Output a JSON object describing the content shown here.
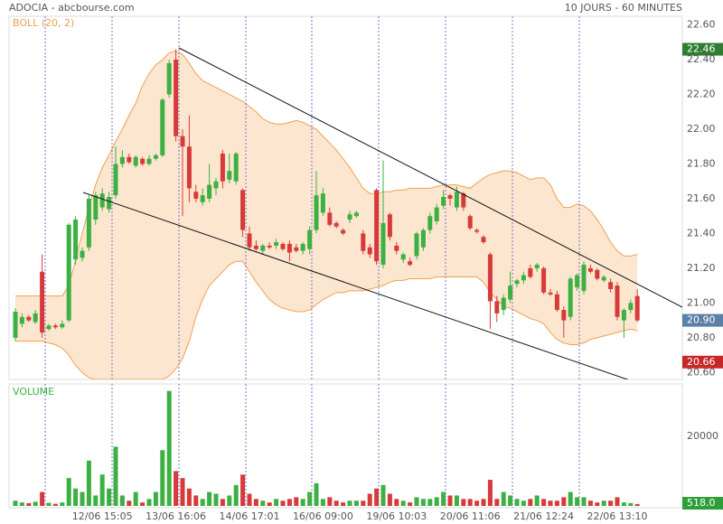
{
  "chart_data": {
    "type": "candlestick",
    "title": "ADOCIA - abcbourse.com",
    "subtitle": "10 JOURS - 60 MINUTES",
    "indicator_label": "BOLL (20, 2)",
    "volume_label": "VOLUME",
    "up_color": "#3cb043",
    "down_color": "#d83a3a",
    "band_color": "#f0a050",
    "categories": [
      null,
      null,
      null,
      null,
      null,
      null,
      null,
      null,
      null,
      null,
      null,
      null,
      null,
      "12/06 15:05",
      null,
      null,
      null,
      null,
      null,
      null,
      null,
      null,
      null,
      null,
      "13/06 16:06",
      null,
      null,
      null,
      null,
      null,
      null,
      null,
      null,
      null,
      null,
      "14/06 17:01",
      null,
      null,
      null,
      null,
      null,
      null,
      null,
      null,
      null,
      null,
      "16/06 09:00",
      null,
      null,
      null,
      null,
      null,
      null,
      null,
      null,
      null,
      null,
      "19/06 10:03",
      null,
      null,
      null,
      null,
      null,
      null,
      null,
      null,
      null,
      null,
      "20/06 11:06",
      null,
      null,
      null,
      null,
      null,
      null,
      null,
      null,
      null,
      null,
      "21/06 12:24",
      null,
      null,
      null,
      null,
      null,
      null,
      null,
      null,
      null,
      null,
      "22/06 13:10",
      null,
      null,
      null
    ],
    "open": [
      20.8,
      20.88,
      20.92,
      20.89,
      21.18,
      20.85,
      20.87,
      20.86,
      20.9,
      21.25,
      21.26,
      21.32,
      21.48,
      21.55,
      21.54,
      21.62,
      21.8,
      21.84,
      21.79,
      21.83,
      21.8,
      21.83,
      21.85,
      22.2,
      22.4,
      21.96,
      21.9,
      21.64,
      21.58,
      21.6,
      21.66,
      21.86,
      21.71,
      21.7,
      21.65,
      21.4,
      21.33,
      21.3,
      21.33,
      21.33,
      21.34,
      21.34,
      21.32,
      21.3,
      21.31,
      21.42,
      21.52,
      21.52,
      21.46,
      21.42,
      21.48,
      21.5,
      21.4,
      21.32,
      21.65,
      21.22,
      21.51,
      21.33,
      21.25,
      21.24,
      21.27,
      21.32,
      21.42,
      21.47,
      21.56,
      21.62,
      21.55,
      21.63,
      21.5,
      21.42,
      21.38,
      21.28,
      21.01,
      20.96,
      21.02,
      21.11,
      21.13,
      21.2,
      21.2,
      21.2,
      21.06,
      21.05,
      20.96,
      20.92,
      21.09,
      21.07,
      21.2,
      21.19,
      21.13,
      21.12,
      21.1,
      20.9,
      20.96,
      21.04
    ],
    "high": [
      20.97,
      20.94,
      20.93,
      20.96,
      21.28,
      20.88,
      20.88,
      20.9,
      21.46,
      21.5,
      21.32,
      21.62,
      21.64,
      21.66,
      21.64,
      21.9,
      21.88,
      21.86,
      21.85,
      21.84,
      21.85,
      21.86,
      22.18,
      22.4,
      22.46,
      22.0,
      22.08,
      21.68,
      21.66,
      21.8,
      21.72,
      21.88,
      21.86,
      21.87,
      21.66,
      21.44,
      21.36,
      21.34,
      21.35,
      21.37,
      21.35,
      21.36,
      21.34,
      21.35,
      21.44,
      21.76,
      21.66,
      21.55,
      21.47,
      21.43,
      21.53,
      21.53,
      21.42,
      21.34,
      21.66,
      21.82,
      21.52,
      21.35,
      21.29,
      21.26,
      21.41,
      21.43,
      21.52,
      21.57,
      21.65,
      21.63,
      21.67,
      21.64,
      21.51,
      21.43,
      21.39,
      21.29,
      21.04,
      21.05,
      21.18,
      21.14,
      21.18,
      21.22,
      21.23,
      21.21,
      21.08,
      21.07,
      20.98,
      21.15,
      21.17,
      21.24,
      21.22,
      21.2,
      21.16,
      21.14,
      21.12,
      20.97,
      21.02,
      21.08
    ],
    "low": [
      20.78,
      20.86,
      20.89,
      20.88,
      20.8,
      20.84,
      20.85,
      20.85,
      20.89,
      21.22,
      21.24,
      21.3,
      21.45,
      21.53,
      21.52,
      21.6,
      21.78,
      21.8,
      21.78,
      21.79,
      21.79,
      21.82,
      21.84,
      22.18,
      21.93,
      21.5,
      21.58,
      21.58,
      21.56,
      21.58,
      21.62,
      21.66,
      21.69,
      21.68,
      21.38,
      21.3,
      21.3,
      21.28,
      21.31,
      21.31,
      21.3,
      21.24,
      21.29,
      21.28,
      21.28,
      21.4,
      21.5,
      21.44,
      21.43,
      21.39,
      21.46,
      21.49,
      21.28,
      21.26,
      21.22,
      21.2,
      21.36,
      21.28,
      21.23,
      21.21,
      21.25,
      21.3,
      21.4,
      21.45,
      21.54,
      21.56,
      21.53,
      21.53,
      21.42,
      21.4,
      21.34,
      20.85,
      20.89,
      20.93,
      21.0,
      21.09,
      21.11,
      21.14,
      21.18,
      21.05,
      21.04,
      20.95,
      20.8,
      20.9,
      21.07,
      21.05,
      21.17,
      21.13,
      21.12,
      21.06,
      20.9,
      20.8,
      20.94,
      20.89
    ],
    "close": [
      20.95,
      20.92,
      20.9,
      20.94,
      20.83,
      20.87,
      20.86,
      20.88,
      21.45,
      21.48,
      21.3,
      21.6,
      21.62,
      21.63,
      21.61,
      21.8,
      21.84,
      21.81,
      21.84,
      21.8,
      21.83,
      21.85,
      22.17,
      22.38,
      21.96,
      21.9,
      21.66,
      21.6,
      21.62,
      21.68,
      21.7,
      21.7,
      21.76,
      21.86,
      21.42,
      21.32,
      21.31,
      21.33,
      21.32,
      21.35,
      21.31,
      21.29,
      21.3,
      21.34,
      21.42,
      21.62,
      21.63,
      21.45,
      21.44,
      21.4,
      21.51,
      21.52,
      21.3,
      21.28,
      21.24,
      21.46,
      21.38,
      21.3,
      21.28,
      21.22,
      21.4,
      21.42,
      21.5,
      21.55,
      21.61,
      21.6,
      21.64,
      21.55,
      21.43,
      21.41,
      21.35,
      21.01,
      20.94,
      21.03,
      21.1,
      21.13,
      21.16,
      21.15,
      21.22,
      21.06,
      21.05,
      20.96,
      20.9,
      21.14,
      21.16,
      21.22,
      21.18,
      21.14,
      21.15,
      21.08,
      20.92,
      20.96,
      21.0,
      20.9
    ],
    "volume": [
      1500,
      1000,
      800,
      1200,
      4000,
      900,
      600,
      1000,
      8000,
      5000,
      4000,
      13000,
      3000,
      9000,
      5000,
      17000,
      3000,
      1500,
      4000,
      1000,
      2000,
      4000,
      16000,
      33000,
      10000,
      8000,
      5000,
      3000,
      2000,
      4000,
      3500,
      2000,
      3000,
      6000,
      9000,
      3500,
      2000,
      1500,
      1000,
      2000,
      1500,
      2000,
      2500,
      2000,
      4000,
      6500,
      2000,
      2500,
      1500,
      1000,
      1500,
      1500,
      1500,
      3500,
      5000,
      6000,
      3500,
      2000,
      1500,
      1000,
      2500,
      2000,
      2000,
      2500,
      4000,
      3000,
      3000,
      2000,
      2000,
      1500,
      2000,
      7500,
      2000,
      4000,
      3000,
      2000,
      1500,
      2000,
      3000,
      2000,
      1500,
      1500,
      2500,
      4000,
      2500,
      2500,
      1500,
      1000,
      1500,
      1500,
      2500,
      1000,
      800,
      518
    ],
    "bollinger": {
      "upper": [
        21.04,
        21.04,
        21.04,
        21.04,
        21.04,
        21.04,
        21.04,
        21.04,
        21.1,
        21.25,
        21.4,
        21.55,
        21.68,
        21.78,
        21.85,
        21.93,
        22.0,
        22.08,
        22.15,
        22.25,
        22.32,
        22.37,
        22.4,
        22.44,
        22.45,
        22.43,
        22.38,
        22.32,
        22.28,
        22.26,
        22.24,
        22.22,
        22.2,
        22.18,
        22.16,
        22.13,
        22.1,
        22.06,
        22.04,
        22.03,
        22.03,
        22.04,
        22.05,
        22.04,
        22.02,
        22.0,
        21.96,
        21.92,
        21.88,
        21.83,
        21.78,
        21.72,
        21.66,
        21.63,
        21.63,
        21.64,
        21.64,
        21.65,
        21.65,
        21.66,
        21.66,
        21.66,
        21.66,
        21.67,
        21.68,
        21.68,
        21.68,
        21.67,
        21.66,
        21.69,
        21.72,
        21.74,
        21.75,
        21.76,
        21.76,
        21.75,
        21.73,
        21.71,
        21.72,
        21.72,
        21.68,
        21.6,
        21.55,
        21.55,
        21.57,
        21.56,
        21.53,
        21.48,
        21.42,
        21.35,
        21.3,
        21.27,
        21.27,
        21.28
      ],
      "lower": [
        20.78,
        20.78,
        20.78,
        20.78,
        20.78,
        20.77,
        20.76,
        20.74,
        20.7,
        20.64,
        20.6,
        20.57,
        20.56,
        20.56,
        20.56,
        20.56,
        20.56,
        20.56,
        20.56,
        20.56,
        20.56,
        20.56,
        20.56,
        20.58,
        20.62,
        20.68,
        20.78,
        20.92,
        21.02,
        21.1,
        21.14,
        21.18,
        21.22,
        21.24,
        21.24,
        21.18,
        21.12,
        21.07,
        21.02,
        20.99,
        20.97,
        20.96,
        20.95,
        20.95,
        20.96,
        20.99,
        21.02,
        21.04,
        21.06,
        21.06,
        21.07,
        21.07,
        21.07,
        21.08,
        21.09,
        21.1,
        21.12,
        21.13,
        21.13,
        21.14,
        21.14,
        21.14,
        21.14,
        21.15,
        21.15,
        21.15,
        21.15,
        21.15,
        21.15,
        21.15,
        21.12,
        21.06,
        21.02,
        20.98,
        20.97,
        20.95,
        20.93,
        20.91,
        20.9,
        20.88,
        20.83,
        20.79,
        20.77,
        20.76,
        20.76,
        20.77,
        20.79,
        20.8,
        20.81,
        20.82,
        20.83,
        20.84,
        20.85,
        20.84
      ]
    },
    "ylim": [
      20.56,
      22.65
    ],
    "yticks": [
      {
        "value": 20.6,
        "label": "20.60"
      },
      {
        "value": 20.8,
        "label": "20.80"
      },
      {
        "value": 21.0,
        "label": "21.00"
      },
      {
        "value": 21.2,
        "label": "21.20"
      },
      {
        "value": 21.4,
        "label": "21.40"
      },
      {
        "value": 21.6,
        "label": "21.60"
      },
      {
        "value": 21.8,
        "label": "21.80"
      },
      {
        "value": 22.0,
        "label": "22.00"
      },
      {
        "value": 22.2,
        "label": "22.20"
      },
      {
        "value": 22.4,
        "label": "22.40"
      },
      {
        "value": 22.6,
        "label": "22.60"
      }
    ],
    "volume_ylim": [
      0,
      35000
    ],
    "volume_yticks": [
      20000
    ],
    "price_markers": [
      {
        "value": 22.46,
        "label": "22.46",
        "color": "#2e7d32"
      },
      {
        "value": 20.9,
        "label": "20.90",
        "color": "#5b7fa6"
      },
      {
        "value": 20.66,
        "label": "20.66",
        "color": "#c62828"
      }
    ],
    "volume_marker": {
      "value": 518,
      "label": "518.0",
      "color": "#2e9e3a"
    },
    "grid": true
  }
}
